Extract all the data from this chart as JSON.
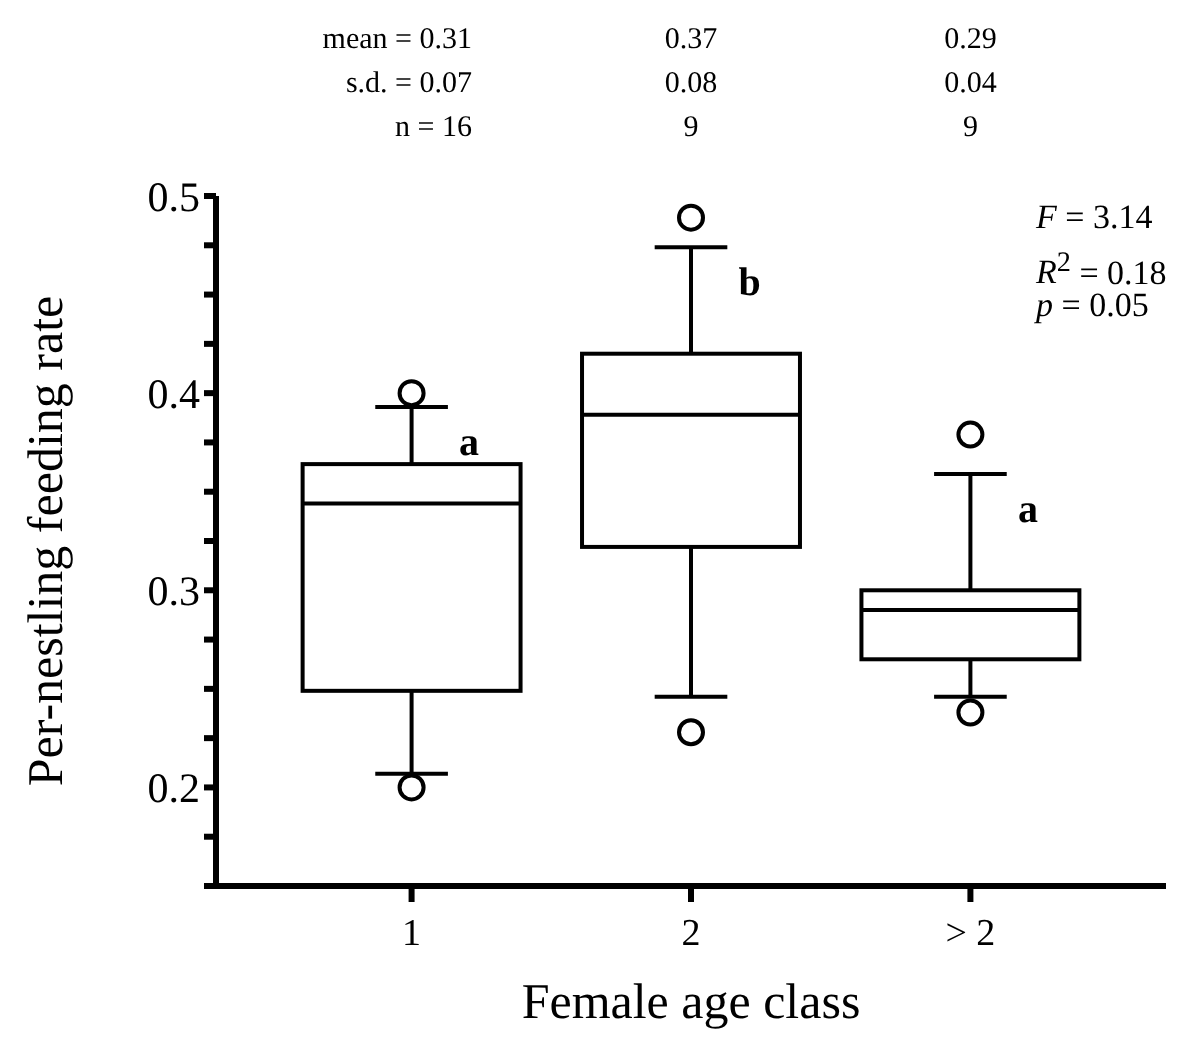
{
  "chart_data": {
    "type": "box",
    "categories": [
      "1",
      "2",
      "> 2"
    ],
    "boxes": [
      {
        "low": 0.207,
        "q1": 0.249,
        "median": 0.344,
        "q3": 0.364,
        "high": 0.393,
        "outliers": [
          0.4,
          0.2
        ]
      },
      {
        "low": 0.246,
        "q1": 0.322,
        "median": 0.389,
        "q3": 0.42,
        "high": 0.474,
        "outliers": [
          0.489,
          0.228
        ]
      },
      {
        "low": 0.246,
        "q1": 0.265,
        "median": 0.29,
        "q3": 0.3,
        "high": 0.359,
        "outliers": [
          0.379,
          0.238
        ]
      }
    ],
    "ylim": [
      0.15,
      0.5
    ],
    "yticks": [
      {
        "value": 0.15,
        "label": null
      },
      {
        "value": 0.175,
        "label": null
      },
      0.2,
      {
        "value": 0.225,
        "label": null
      },
      {
        "value": 0.25,
        "label": null
      },
      {
        "value": 0.275,
        "label": null
      },
      0.3,
      {
        "value": 0.325,
        "label": null
      },
      {
        "value": 0.35,
        "label": null
      },
      {
        "value": 0.375,
        "label": null
      },
      0.4,
      {
        "value": 0.425,
        "label": null
      },
      {
        "value": 0.45,
        "label": null
      },
      {
        "value": 0.475,
        "label": null
      },
      0.5
    ],
    "xlabel": "Female age class",
    "ylabel": "Per-nestling feeding rate",
    "annotations": [
      "mean = 0.31",
      "0.37",
      "0.29",
      "s.d. = 0.07",
      "0.08",
      "0.04",
      "n = 16",
      "9",
      "9",
      {
        "text": "a",
        "x": "1",
        "y": 0.393
      },
      {
        "text": "b",
        "x": "2",
        "y": 0.474
      },
      {
        "text": "a",
        "x": "> 2",
        "y": 0.359
      },
      "F = 3.14",
      "R$^{2}$ = 0.18",
      "p = 0.05"
    ]
  }
}
